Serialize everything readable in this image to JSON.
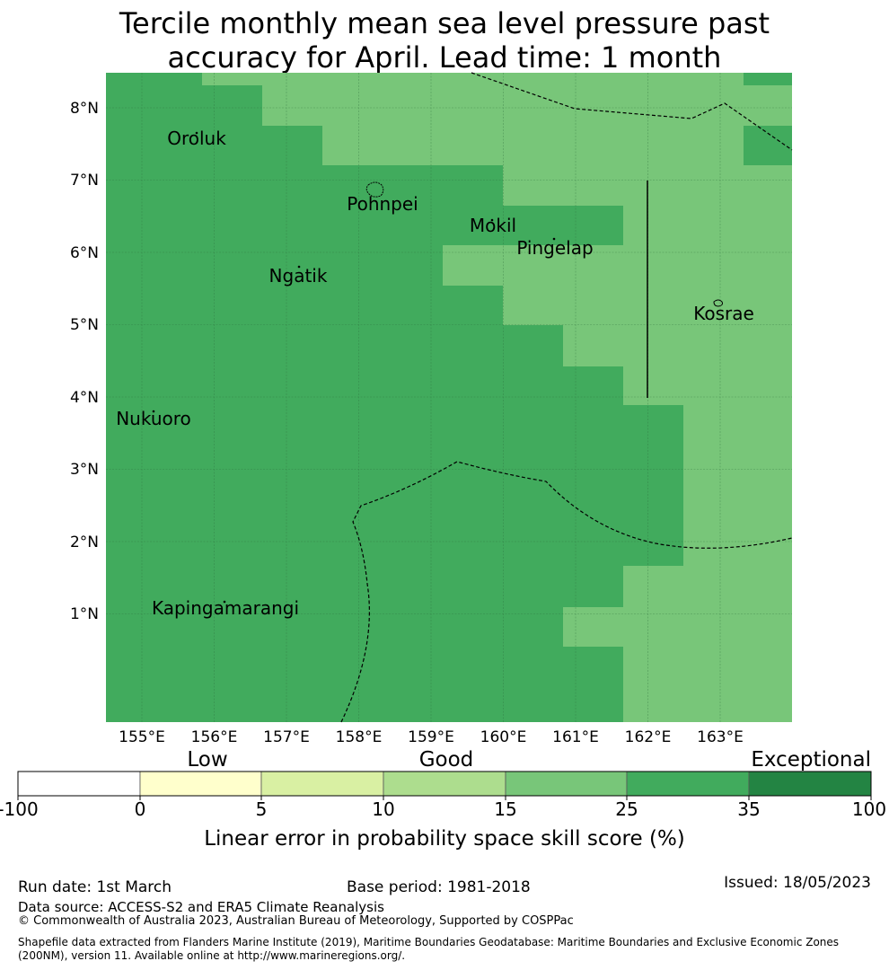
{
  "title": {
    "line1": "Tercile monthly mean sea level pressure past",
    "line2": "accuracy for April. Lead time: 1 month"
  },
  "map": {
    "lat_labels": [
      "8°N",
      "7°N",
      "6°N",
      "5°N",
      "4°N",
      "3°N",
      "2°N",
      "1°N"
    ],
    "lon_labels": [
      "155°E",
      "156°E",
      "157°E",
      "158°E",
      "159°E",
      "160°E",
      "161°E",
      "162°E",
      "163°E"
    ],
    "places": [
      {
        "name": "Oroluk"
      },
      {
        "name": "Pohnpei"
      },
      {
        "name": "Mokil"
      },
      {
        "name": "Pingelap"
      },
      {
        "name": "Ngatik"
      },
      {
        "name": "Kosrae"
      },
      {
        "name": "Nukuoro"
      },
      {
        "name": "Kapingamarangi"
      }
    ],
    "colors": {
      "band_15_25": "#78c679",
      "band_25_35": "#41ab5d"
    }
  },
  "legend": {
    "category_labels": [
      "Low",
      "Good",
      "Exceptional"
    ],
    "tick_labels": [
      "-100",
      "0",
      "5",
      "10",
      "15",
      "25",
      "35",
      "100"
    ],
    "colors": [
      "#ffffff",
      "#ffffcc",
      "#d9f0a3",
      "#addd8e",
      "#78c679",
      "#41ab5d",
      "#238443"
    ],
    "axis_label": "Linear error in probability space skill score (%)"
  },
  "footer": {
    "run_date": "Run date: 1st March",
    "base_period": "Base period: 1981-2018",
    "issued": "Issued: 18/05/2023",
    "data_source": "Data source: ACCESS-S2 and ERA5 Climate Reanalysis",
    "copyright": "© Commonwealth of Australia 2023, Australian Bureau of Meteorology, Supported by COSPPac",
    "shapefile_line1": "Shapefile data extracted from Flanders Marine Institute (2019), Maritime Boundaries Geodatabase: Maritime Boundaries and Exclusive Economic Zones",
    "shapefile_line2": "(200NM), version 11. Available online at http://www.marineregions.org/."
  }
}
